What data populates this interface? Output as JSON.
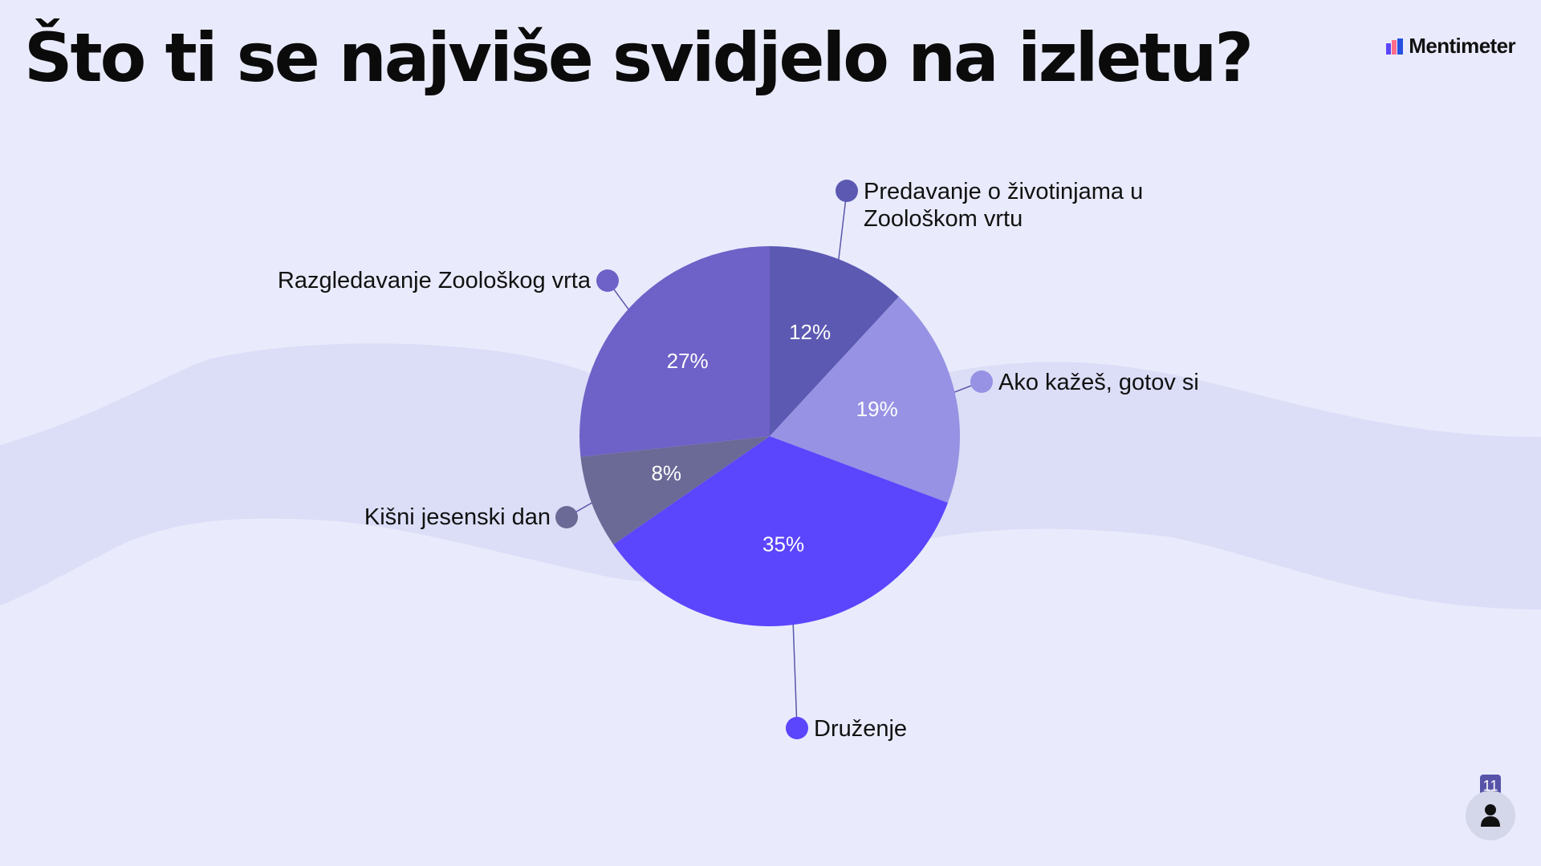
{
  "title": "Što ti se najviše svidjelo na izletu?",
  "brand": {
    "name": "Mentimeter",
    "logo_icon": "mentimeter-logo-icon"
  },
  "participants": {
    "count": "11",
    "icon": "person-icon"
  },
  "colors": {
    "background": "#e9ebfc",
    "wave": "#dcdef7",
    "leader_line": "#5a56aa"
  },
  "chart_data": {
    "type": "pie",
    "title": "Što ti se najviše svidjelo na izletu?",
    "start_angle_deg": 0,
    "direction": "clockwise",
    "slices": [
      {
        "label": "Predavanje o životinjama u Zoološkom vrtu",
        "value": 12,
        "display": "12%",
        "color": "#5c59b3"
      },
      {
        "label": "Ako kažeš, gotov si",
        "value": 19,
        "display": "19%",
        "color": "#9792e3"
      },
      {
        "label": "Druženje",
        "value": 35,
        "display": "35%",
        "color": "#5b45fd"
      },
      {
        "label": "Kišni jesenski dan",
        "value": 8,
        "display": "8%",
        "color": "#6b6a96"
      },
      {
        "label": "Razgledavanje Zoološkog vrta",
        "value": 27,
        "display": "27%",
        "color": "#6e61c7"
      }
    ]
  }
}
